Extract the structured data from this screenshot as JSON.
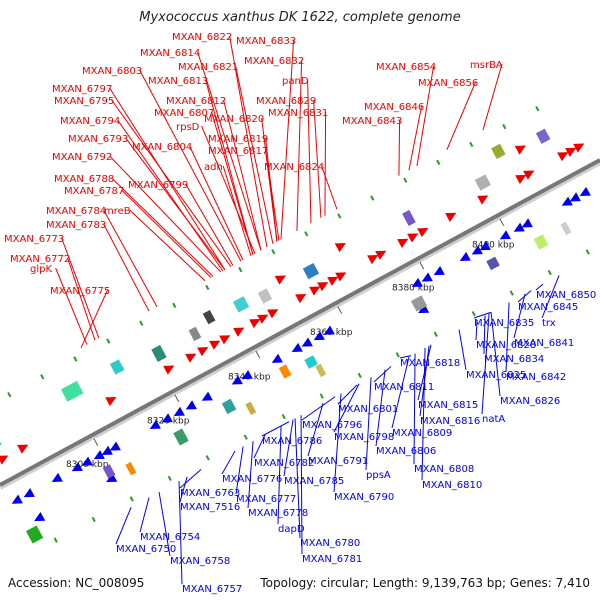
{
  "title": "Myxococcus xanthus DK 1622, complete genome",
  "accession": "Accession: NC_008095",
  "summary": "Topology: circular; Length: 9,139,763 bp; Genes: 7,410",
  "colors": {
    "forward": "#ee0000",
    "reverse": "#0000ee",
    "backbone": "#777777"
  },
  "ticks": [
    "8300 kbp",
    "8320 kbp",
    "8340 kbp",
    "8360 kbp",
    "8380 kbp",
    "8400 kbp"
  ],
  "forward_genes": [
    "MXAN_6822",
    "MXAN_6833",
    "MXAN_6814",
    "MXAN_6832",
    "MXAN_6821",
    "MXAN_6803",
    "MXAN_6813",
    "panD",
    "MXAN_6854",
    "msrBA",
    "MXAN_6797",
    "MXAN_6812",
    "MXAN_6856",
    "MXAN_6795",
    "MXAN_6807",
    "MXAN_6829",
    "MXAN_6846",
    "MXAN_6820",
    "rpsD",
    "MXAN_6831",
    "MXAN_6843",
    "MXAN_6794",
    "MXAN_6819",
    "MXAN_6793",
    "MXAN_6804",
    "MXAN_6817",
    "MXAN_6792",
    "adh",
    "MXAN_6824",
    "MXAN_6788",
    "MXAN_6799",
    "MXAN_6787",
    "mreB",
    "MXAN_6784",
    "MXAN_6783",
    "MXAN_6773",
    "MXAN_6772",
    "glpK",
    "MXAN_6775"
  ],
  "reverse_genes": [
    "MXAN_6850",
    "MXAN_6845",
    "MXAN_6835",
    "trx",
    "MXAN_6828",
    "MXAN_6841",
    "MXAN_6834",
    "MXAN_6818",
    "MXAN_6825",
    "MXAN_6842",
    "MXAN_6811",
    "MXAN_6826",
    "MXAN_6815",
    "MXAN_6801",
    "MXAN_6816",
    "natA",
    "MXAN_6796",
    "MXAN_6809",
    "MXAN_6798",
    "MXAN_6786",
    "MXAN_6806",
    "MXAN_6791",
    "MXAN_6782",
    "ppsA",
    "MXAN_6808",
    "MXAN_6776",
    "MXAN_6785",
    "MXAN_6810",
    "MXAN_6763",
    "MXAN_6790",
    "MXAN_6777",
    "MXAN_7516",
    "MXAN_6778",
    "dapD",
    "MXAN_6754",
    "MXAN_6780",
    "MXAN_6750",
    "MXAN_6781",
    "MXAN_6758",
    "MXAN_6757"
  ]
}
